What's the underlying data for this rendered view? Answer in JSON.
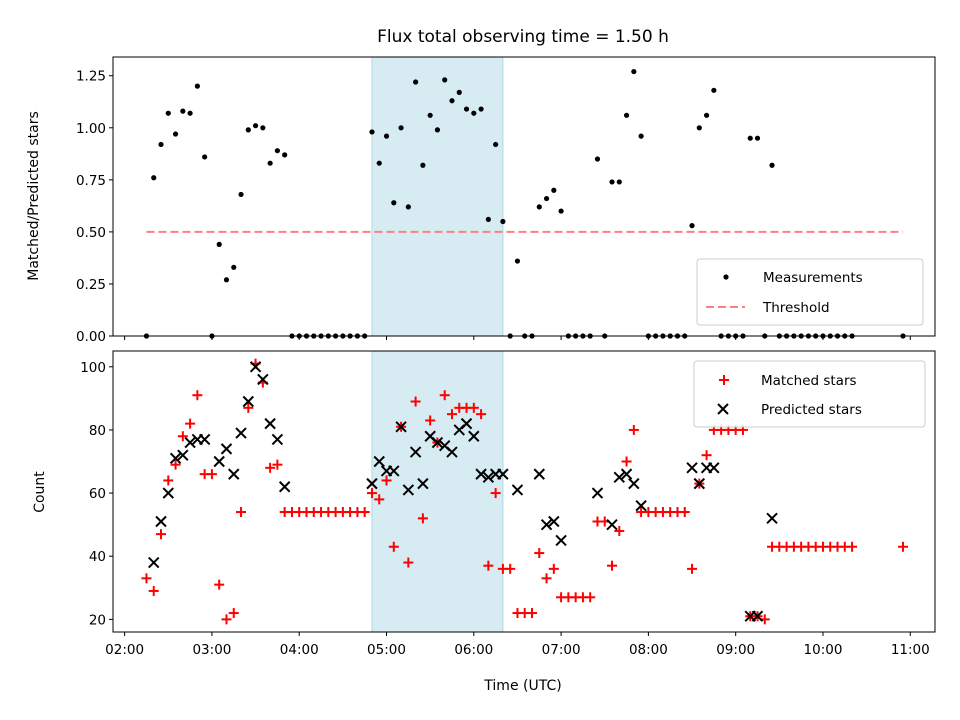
{
  "figure": {
    "title": "Flux total observing time = 1.50 h",
    "xlabel": "Time (UTC)",
    "xticks": [
      "02:00",
      "03:00",
      "04:00",
      "05:00",
      "06:00",
      "07:00",
      "08:00",
      "09:00",
      "10:00",
      "11:00"
    ],
    "shaded_span": [
      "04:50",
      "06:20"
    ],
    "shade_color": "#add8e6"
  },
  "chart_data": [
    {
      "type": "scatter",
      "panel": "top",
      "ylabel": "Matched/Predicted stars",
      "xlim": [
        "01:52",
        "11:17"
      ],
      "ylim": [
        0,
        1.34
      ],
      "yticks": [
        "0.00",
        "0.25",
        "0.50",
        "0.75",
        "1.00",
        "1.25"
      ],
      "legend_position": "bottom-right",
      "threshold": {
        "name": "Threshold",
        "value": 0.5,
        "x_range": [
          "02:15",
          "10:55"
        ],
        "color": "#ff7f7f"
      },
      "series": [
        {
          "name": "Measurements",
          "marker": "dot",
          "color": "#000000",
          "x": [
            "02:15",
            "02:20",
            "02:25",
            "02:30",
            "02:35",
            "02:40",
            "02:45",
            "02:50",
            "02:55",
            "03:00",
            "03:05",
            "03:10",
            "03:15",
            "03:20",
            "03:25",
            "03:30",
            "03:35",
            "03:40",
            "03:45",
            "03:50",
            "03:55",
            "04:00",
            "04:05",
            "04:10",
            "04:15",
            "04:20",
            "04:25",
            "04:30",
            "04:35",
            "04:40",
            "04:45",
            "04:50",
            "04:55",
            "05:00",
            "05:05",
            "05:10",
            "05:15",
            "05:20",
            "05:25",
            "05:30",
            "05:35",
            "05:40",
            "05:45",
            "05:50",
            "05:55",
            "06:00",
            "06:05",
            "06:10",
            "06:15",
            "06:20",
            "06:25",
            "06:30",
            "06:35",
            "06:40",
            "06:45",
            "06:50",
            "06:55",
            "07:00",
            "07:05",
            "07:10",
            "07:15",
            "07:20",
            "07:25",
            "07:30",
            "07:35",
            "07:40",
            "07:45",
            "07:50",
            "07:55",
            "08:00",
            "08:05",
            "08:10",
            "08:15",
            "08:20",
            "08:25",
            "08:30",
            "08:35",
            "08:40",
            "08:45",
            "08:50",
            "08:55",
            "09:00",
            "09:05",
            "09:10",
            "09:15",
            "09:20",
            "09:25",
            "09:30",
            "09:35",
            "09:40",
            "09:45",
            "09:50",
            "09:55",
            "10:00",
            "10:05",
            "10:10",
            "10:15",
            "10:20",
            "10:55"
          ],
          "y": [
            0.0,
            0.76,
            0.92,
            1.07,
            0.97,
            1.08,
            1.07,
            1.2,
            0.86,
            0.0,
            0.44,
            0.27,
            0.33,
            0.68,
            0.99,
            1.01,
            1.0,
            0.83,
            0.89,
            0.87,
            0.0,
            0.0,
            0.0,
            0.0,
            0.0,
            0.0,
            0.0,
            0.0,
            0.0,
            0.0,
            0.0,
            0.98,
            0.83,
            0.96,
            0.64,
            1.0,
            0.62,
            1.22,
            0.82,
            1.06,
            0.99,
            1.23,
            1.13,
            1.17,
            1.09,
            1.07,
            1.09,
            0.56,
            0.92,
            0.55,
            0.0,
            0.36,
            0.0,
            0.0,
            0.62,
            0.66,
            0.7,
            0.6,
            0.0,
            0.0,
            0.0,
            0.0,
            0.85,
            0.0,
            0.74,
            0.74,
            1.06,
            1.27,
            0.96,
            0.0,
            0.0,
            0.0,
            0.0,
            0.0,
            0.0,
            0.53,
            1.0,
            1.06,
            1.18,
            0.0,
            0.0,
            0.0,
            0.0,
            0.95,
            0.95,
            0.0,
            0.82,
            0.0,
            0.0,
            0.0,
            0.0,
            0.0,
            0.0,
            0.0,
            0.0,
            0.0,
            0.0,
            0.0,
            0.0
          ]
        }
      ]
    },
    {
      "type": "scatter",
      "panel": "bottom",
      "ylabel": "Count",
      "xlim": [
        "01:52",
        "11:17"
      ],
      "ylim": [
        16,
        105
      ],
      "yticks": [
        "20",
        "40",
        "60",
        "80",
        "100"
      ],
      "legend_position": "top-right",
      "series": [
        {
          "name": "Matched stars",
          "marker": "plus",
          "color": "#ff0000",
          "x": [
            "02:15",
            "02:20",
            "02:25",
            "02:30",
            "02:35",
            "02:40",
            "02:45",
            "02:50",
            "02:55",
            "03:00",
            "03:05",
            "03:10",
            "03:15",
            "03:20",
            "03:25",
            "03:30",
            "03:35",
            "03:40",
            "03:45",
            "03:50",
            "03:55",
            "04:00",
            "04:05",
            "04:10",
            "04:15",
            "04:20",
            "04:25",
            "04:30",
            "04:35",
            "04:40",
            "04:45",
            "04:50",
            "04:55",
            "05:00",
            "05:05",
            "05:10",
            "05:15",
            "05:20",
            "05:25",
            "05:30",
            "05:35",
            "05:40",
            "05:45",
            "05:50",
            "05:55",
            "06:00",
            "06:05",
            "06:10",
            "06:15",
            "06:20",
            "06:25",
            "06:30",
            "06:35",
            "06:40",
            "06:45",
            "06:50",
            "06:55",
            "07:00",
            "07:05",
            "07:10",
            "07:15",
            "07:20",
            "07:25",
            "07:30",
            "07:35",
            "07:40",
            "07:45",
            "07:50",
            "07:55",
            "08:00",
            "08:05",
            "08:10",
            "08:15",
            "08:20",
            "08:25",
            "08:30",
            "08:35",
            "08:40",
            "08:45",
            "08:50",
            "08:55",
            "09:00",
            "09:05",
            "09:10",
            "09:15",
            "09:20",
            "09:25",
            "09:30",
            "09:35",
            "09:40",
            "09:45",
            "09:50",
            "09:55",
            "10:00",
            "10:05",
            "10:10",
            "10:15",
            "10:20",
            "10:55"
          ],
          "y": [
            33,
            29,
            47,
            64,
            69,
            78,
            82,
            91,
            66,
            66,
            31,
            20,
            22,
            54,
            87,
            101,
            95,
            68,
            69,
            54,
            54,
            54,
            54,
            54,
            54,
            54,
            54,
            54,
            54,
            54,
            54,
            60,
            58,
            64,
            43,
            81,
            38,
            89,
            52,
            83,
            76,
            91,
            85,
            87,
            87,
            87,
            85,
            37,
            60,
            36,
            36,
            22,
            22,
            22,
            41,
            33,
            36,
            27,
            27,
            27,
            27,
            27,
            51,
            51,
            37,
            48,
            70,
            80,
            54,
            54,
            54,
            54,
            54,
            54,
            54,
            36,
            63,
            72,
            80,
            80,
            80,
            80,
            80,
            21,
            21,
            20,
            43,
            43,
            43,
            43,
            43,
            43,
            43,
            43,
            43,
            43,
            43,
            43,
            43
          ]
        },
        {
          "name": "Predicted stars",
          "marker": "x",
          "color": "#000000",
          "x": [
            "02:20",
            "02:25",
            "02:30",
            "02:35",
            "02:40",
            "02:45",
            "02:50",
            "02:55",
            "03:05",
            "03:10",
            "03:15",
            "03:20",
            "03:25",
            "03:30",
            "03:35",
            "03:40",
            "03:45",
            "03:50",
            "04:50",
            "04:55",
            "05:00",
            "05:05",
            "05:10",
            "05:15",
            "05:20",
            "05:25",
            "05:30",
            "05:35",
            "05:40",
            "05:45",
            "05:50",
            "05:55",
            "06:00",
            "06:05",
            "06:10",
            "06:15",
            "06:20",
            "06:30",
            "06:45",
            "06:50",
            "06:55",
            "07:00",
            "07:25",
            "07:35",
            "07:40",
            "07:45",
            "07:50",
            "07:55",
            "08:30",
            "08:35",
            "08:40",
            "08:45",
            "09:10",
            "09:15",
            "09:25"
          ],
          "y": [
            38,
            51,
            60,
            71,
            72,
            76,
            77,
            77,
            70,
            74,
            66,
            79,
            89,
            100,
            96,
            82,
            77,
            62,
            63,
            70,
            67,
            67,
            81,
            61,
            73,
            63,
            78,
            76,
            75,
            73,
            80,
            82,
            78,
            66,
            65,
            66,
            66,
            61,
            66,
            50,
            51,
            45,
            60,
            50,
            65,
            66,
            63,
            56,
            68,
            63,
            68,
            68,
            21,
            21,
            52
          ]
        }
      ]
    }
  ]
}
